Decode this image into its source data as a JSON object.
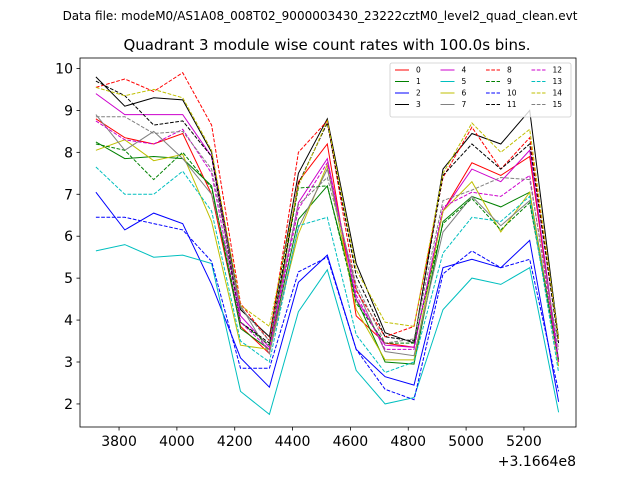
{
  "suptitle": "Data file: modeM0/AS1A08_008T02_9000003430_23222cztM0_level2_quad_clean.evt",
  "title": "Quadrant 3 module wise count rates with 100.0s bins.",
  "x_offset_label": "+3.1664e8",
  "chart_data": {
    "type": "line",
    "title": "Quadrant 3 module wise count rates with 100.0s bins.",
    "xlabel": "",
    "ylabel": "",
    "x_offset": 316640000,
    "x_offset_label": "+3.1664e8",
    "x": [
      3720,
      3820,
      3920,
      4020,
      4120,
      4220,
      4320,
      4420,
      4520,
      4620,
      4720,
      4820,
      4920,
      5020,
      5120,
      5220,
      5320
    ],
    "xlim": [
      3665,
      5380
    ],
    "ylim": [
      1.45,
      10.25
    ],
    "xticks": [
      3800,
      4000,
      4200,
      4400,
      4600,
      4800,
      5000,
      5200
    ],
    "yticks": [
      2,
      3,
      4,
      5,
      6,
      7,
      8,
      9,
      10
    ],
    "legend_position": "upper right",
    "grid": false,
    "series": [
      {
        "name": "0",
        "color": "#ff0000",
        "dash": false,
        "values": [
          8.8,
          8.35,
          8.2,
          8.45,
          7.0,
          3.85,
          3.2,
          7.3,
          8.2,
          4.1,
          3.45,
          3.35,
          6.6,
          7.75,
          7.45,
          7.9,
          3.0
        ]
      },
      {
        "name": "1",
        "color": "#008000",
        "dash": false,
        "values": [
          8.25,
          7.85,
          7.9,
          7.85,
          7.2,
          3.8,
          3.3,
          6.4,
          7.2,
          4.5,
          3.0,
          2.95,
          6.35,
          6.95,
          6.7,
          7.05,
          3.0
        ]
      },
      {
        "name": "2",
        "color": "#0000ff",
        "dash": false,
        "values": [
          7.05,
          6.15,
          6.55,
          6.3,
          4.85,
          3.1,
          2.4,
          4.9,
          5.55,
          3.3,
          2.65,
          2.45,
          5.25,
          5.45,
          5.25,
          5.9,
          2.05
        ]
      },
      {
        "name": "3",
        "color": "#000000",
        "dash": false,
        "values": [
          9.8,
          9.1,
          9.3,
          9.25,
          8.0,
          4.25,
          3.6,
          7.5,
          8.8,
          5.35,
          3.7,
          3.45,
          7.6,
          8.45,
          8.2,
          9.0,
          3.55
        ]
      },
      {
        "name": "4",
        "color": "#cc00cc",
        "dash": false,
        "values": [
          9.4,
          8.9,
          8.9,
          8.9,
          7.9,
          4.1,
          3.35,
          6.8,
          7.85,
          4.5,
          3.4,
          3.35,
          6.6,
          7.6,
          7.3,
          8.05,
          3.05
        ]
      },
      {
        "name": "5",
        "color": "#00bfbf",
        "dash": false,
        "values": [
          5.65,
          5.8,
          5.5,
          5.55,
          5.35,
          2.3,
          1.75,
          4.2,
          5.2,
          2.8,
          2.0,
          2.15,
          4.25,
          5.0,
          4.85,
          5.25,
          1.8
        ]
      },
      {
        "name": "6",
        "color": "#bfbf00",
        "dash": false,
        "values": [
          8.05,
          8.3,
          7.8,
          7.95,
          6.35,
          3.4,
          3.3,
          6.05,
          7.7,
          4.25,
          3.05,
          3.05,
          6.6,
          7.3,
          6.1,
          7.05,
          2.9
        ]
      },
      {
        "name": "7",
        "color": "#808080",
        "dash": false,
        "values": [
          8.9,
          8.05,
          8.5,
          7.85,
          7.0,
          4.35,
          3.2,
          6.2,
          7.6,
          4.75,
          3.25,
          3.15,
          6.1,
          6.95,
          6.25,
          6.85,
          3.0
        ]
      },
      {
        "name": "8",
        "color": "#ff0000",
        "dash": true,
        "values": [
          9.55,
          9.75,
          9.45,
          9.9,
          8.65,
          4.4,
          3.5,
          8.0,
          8.75,
          4.7,
          3.6,
          3.85,
          7.4,
          8.6,
          7.6,
          8.35,
          3.5
        ]
      },
      {
        "name": "9",
        "color": "#008000",
        "dash": true,
        "values": [
          8.2,
          8.05,
          7.35,
          8.0,
          7.15,
          3.95,
          3.4,
          7.15,
          7.2,
          4.4,
          3.45,
          3.45,
          6.3,
          6.9,
          6.15,
          6.8,
          3.05
        ]
      },
      {
        "name": "10",
        "color": "#0000ff",
        "dash": true,
        "values": [
          6.45,
          6.45,
          6.3,
          6.15,
          5.4,
          2.85,
          2.85,
          5.15,
          5.5,
          3.3,
          2.35,
          2.1,
          5.1,
          5.65,
          5.25,
          5.45,
          2.3
        ]
      },
      {
        "name": "11",
        "color": "#000000",
        "dash": true,
        "values": [
          9.7,
          9.35,
          8.65,
          8.75,
          7.9,
          3.95,
          3.45,
          7.25,
          8.7,
          5.05,
          3.6,
          3.5,
          7.45,
          8.2,
          7.6,
          8.2,
          3.45
        ]
      },
      {
        "name": "12",
        "color": "#cc00cc",
        "dash": true,
        "values": [
          8.75,
          8.3,
          8.2,
          8.55,
          7.5,
          3.95,
          3.3,
          6.65,
          7.75,
          4.6,
          3.3,
          3.3,
          6.7,
          7.05,
          6.95,
          7.45,
          3.0
        ]
      },
      {
        "name": "13",
        "color": "#00bfbf",
        "dash": true,
        "values": [
          7.65,
          7.0,
          7.0,
          7.55,
          6.6,
          3.5,
          3.0,
          6.25,
          6.45,
          3.65,
          2.75,
          3.0,
          5.6,
          6.45,
          6.35,
          6.95,
          2.75
        ]
      },
      {
        "name": "14",
        "color": "#bfbf00",
        "dash": true,
        "values": [
          9.55,
          9.35,
          9.5,
          9.3,
          8.05,
          4.35,
          3.85,
          7.2,
          8.75,
          5.2,
          3.95,
          3.85,
          7.5,
          8.7,
          8.0,
          8.55,
          3.55
        ]
      },
      {
        "name": "15",
        "color": "#808080",
        "dash": true,
        "values": [
          8.85,
          8.85,
          8.45,
          8.5,
          7.6,
          4.3,
          3.5,
          6.75,
          7.4,
          4.85,
          3.45,
          3.55,
          6.85,
          7.1,
          7.4,
          7.35,
          3.3
        ]
      }
    ]
  }
}
